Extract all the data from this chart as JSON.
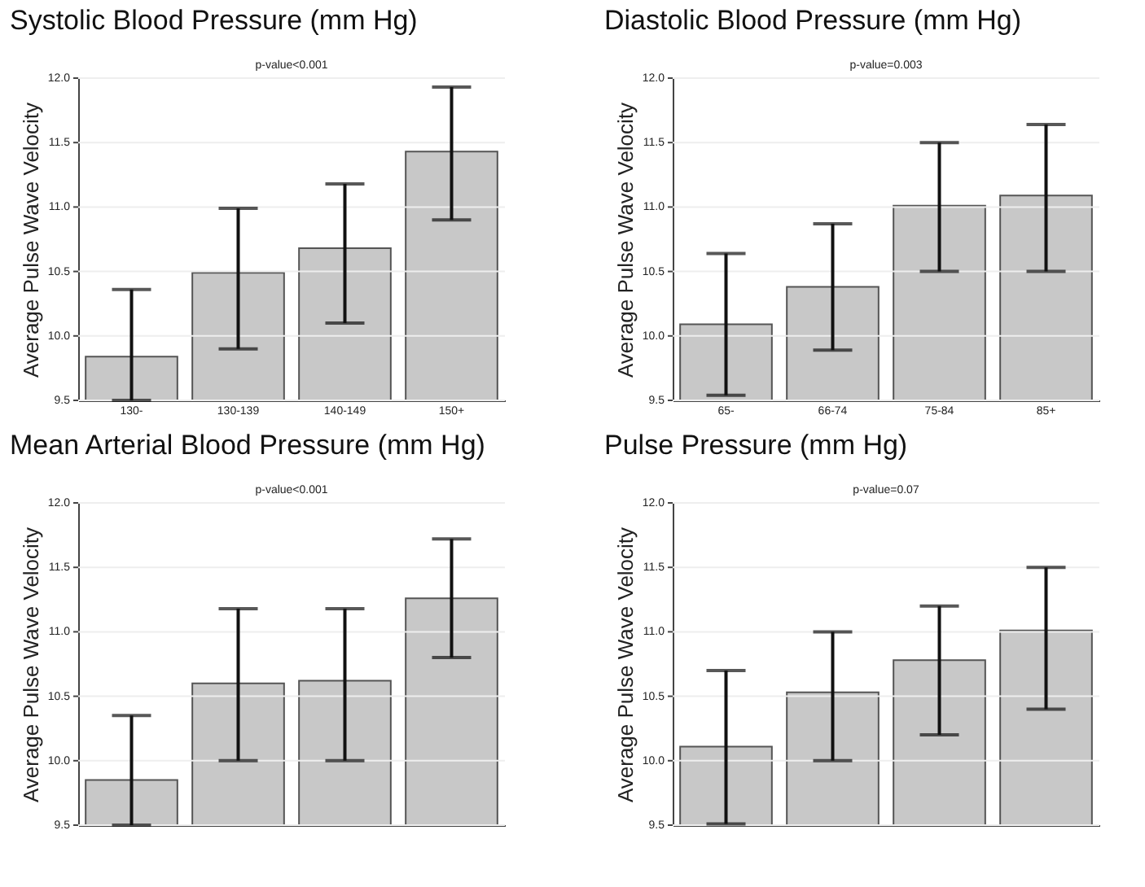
{
  "chart_data": [
    {
      "type": "bar",
      "title": "Systolic Blood Pressure (mm Hg)",
      "subtitle": "p-value<0.001",
      "ylabel": "Average Pulse Wave Velocity",
      "categories": [
        "130-",
        "130-139",
        "140-149",
        "150+"
      ],
      "values": [
        9.84,
        10.49,
        10.68,
        11.43
      ],
      "errors": [
        [
          9.5,
          10.36
        ],
        [
          9.9,
          10.99
        ],
        [
          10.1,
          11.18
        ],
        [
          10.9,
          11.93
        ]
      ],
      "color": "#c8c8c8",
      "ylim": [
        9.5,
        12
      ],
      "yticks": [
        9.5,
        {
          "value": 10,
          "label": "10.0"
        },
        10.5,
        {
          "value": 11,
          "label": "11.0"
        },
        11.5,
        {
          "value": 12,
          "label": "12.0"
        }
      ],
      "grid": "y"
    },
    {
      "type": "bar",
      "title": "Diastolic Blood Pressure (mm Hg)",
      "subtitle": "p-value=0.003",
      "ylabel": "Average Pulse Wave Velocity",
      "categories": [
        "65-",
        "66-74",
        "75-84",
        "85+"
      ],
      "values": [
        10.09,
        10.38,
        11.01,
        11.09
      ],
      "errors": [
        [
          9.54,
          10.64
        ],
        [
          9.89,
          10.87
        ],
        [
          10.5,
          11.5
        ],
        [
          10.5,
          11.64
        ]
      ],
      "color": "#c8c8c8",
      "ylim": [
        9.5,
        12
      ],
      "yticks": [
        9.5,
        {
          "value": 10,
          "label": "10.0"
        },
        10.5,
        {
          "value": 11,
          "label": "11.0"
        },
        11.5,
        {
          "value": 12,
          "label": "12.0"
        }
      ],
      "grid": "y"
    },
    {
      "type": "bar",
      "title": "Mean Arterial Blood Pressure (mm Hg)",
      "subtitle": "p-value<0.001",
      "ylabel": "Average Pulse Wave Velocity",
      "categories": [
        null,
        null,
        null,
        null
      ],
      "values": [
        9.85,
        10.6,
        10.62,
        11.26
      ],
      "errors": [
        [
          9.5,
          10.35
        ],
        [
          10.0,
          11.18
        ],
        [
          10.0,
          11.18
        ],
        [
          10.8,
          11.72
        ]
      ],
      "color": "#c8c8c8",
      "ylim": [
        9.5,
        12
      ],
      "yticks": [
        9.5,
        {
          "value": 10,
          "label": "10.0"
        },
        10.5,
        {
          "value": 11,
          "label": "11.0"
        },
        11.5,
        {
          "value": 12,
          "label": "12.0"
        }
      ],
      "grid": "y",
      "tick_labels": "y"
    },
    {
      "type": "bar",
      "title": "Pulse Pressure (mm Hg)",
      "subtitle": "p-value=0.07",
      "ylabel": "Average Pulse Wave Velocity",
      "categories": [
        null,
        null,
        null,
        null
      ],
      "values": [
        10.11,
        10.53,
        10.78,
        11.01
      ],
      "errors": [
        [
          9.51,
          10.7
        ],
        [
          10.0,
          11.0
        ],
        [
          10.2,
          11.2
        ],
        [
          10.4,
          11.5
        ]
      ],
      "color": "#c8c8c8",
      "ylim": [
        9.5,
        12
      ],
      "yticks": [
        9.5,
        {
          "value": 10,
          "label": "10.0"
        },
        10.5,
        {
          "value": 11,
          "label": "11.0"
        },
        11.5,
        {
          "value": 12,
          "label": "12.0"
        }
      ],
      "grid": "y",
      "tick_labels": "y"
    }
  ]
}
